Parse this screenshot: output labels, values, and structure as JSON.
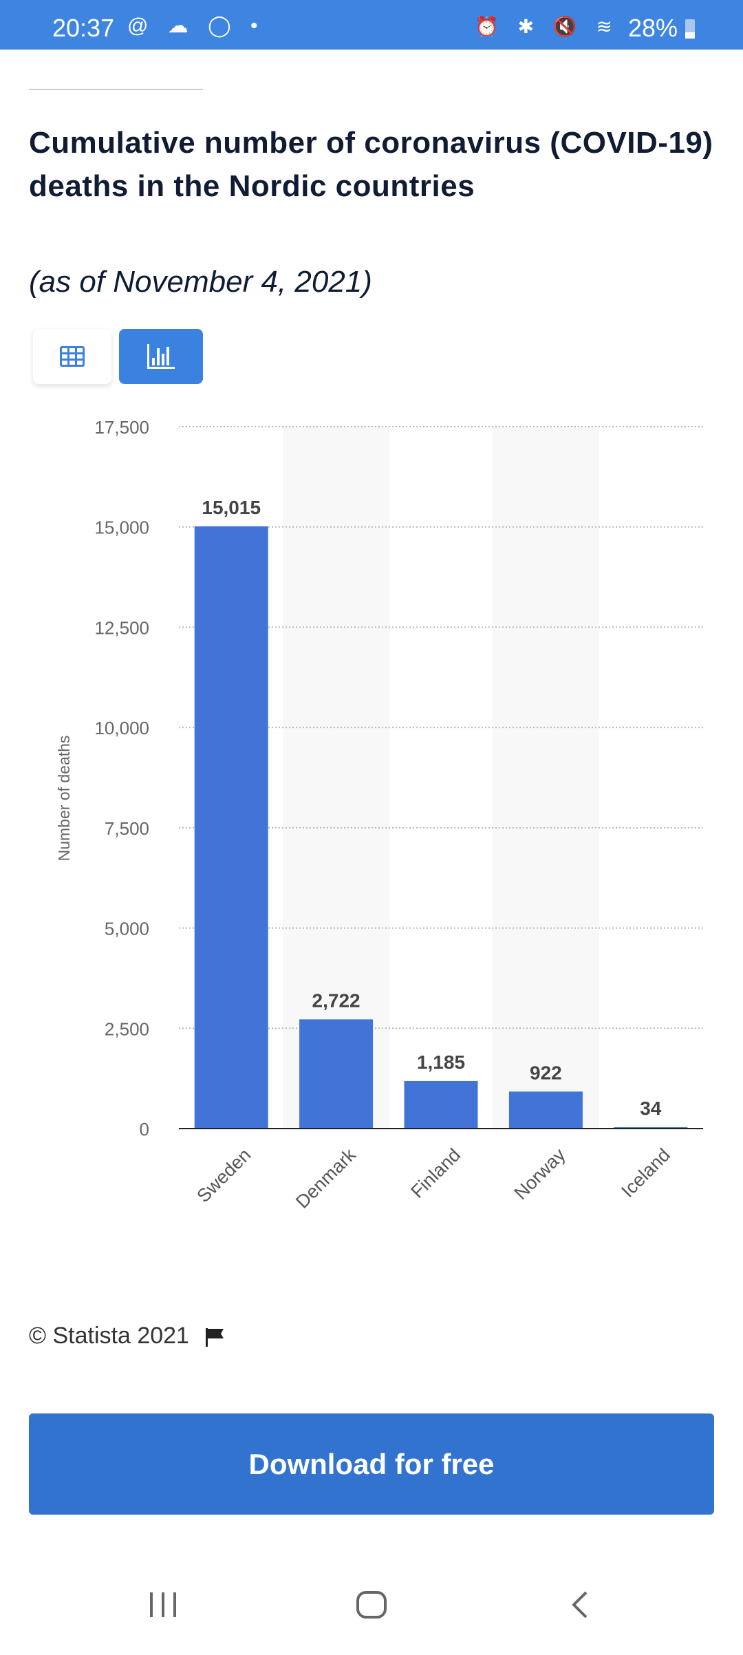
{
  "status_bar": {
    "time": "20:37",
    "battery": "28%",
    "left_icons": "@ ☁ ◯ •",
    "right_icons": "⏰ ✱ 🔇 ≋"
  },
  "title": "Cumulative number of coronavirus (COVID-19) deaths in the Nordic countries",
  "subtitle": "(as of November 4, 2021)",
  "view_toggle": {
    "table_icon": "table-icon",
    "chart_icon": "bar-chart-icon",
    "active": "chart"
  },
  "chart_data": {
    "type": "bar",
    "categories": [
      "Sweden",
      "Denmark",
      "Finland",
      "Norway",
      "Iceland"
    ],
    "values": [
      15015,
      2722,
      1185,
      922,
      34
    ],
    "value_labels": [
      "15,015",
      "2,722",
      "1,185",
      "922",
      "34"
    ],
    "ylabel": "Number of deaths",
    "xlabel": "",
    "ylim": [
      0,
      17500
    ],
    "yticks": [
      0,
      2500,
      5000,
      7500,
      10000,
      12500,
      15000,
      17500
    ],
    "ytick_labels": [
      "0",
      "2,500",
      "5,000",
      "7,500",
      "10,000",
      "12,500",
      "15,000",
      "17,500"
    ],
    "grid": true,
    "bar_color": "#4174d6"
  },
  "copyright": "© Statista 2021",
  "download_label": "Download for free",
  "colors": {
    "accent": "#3373d0",
    "status_bar": "#3d85e0"
  }
}
